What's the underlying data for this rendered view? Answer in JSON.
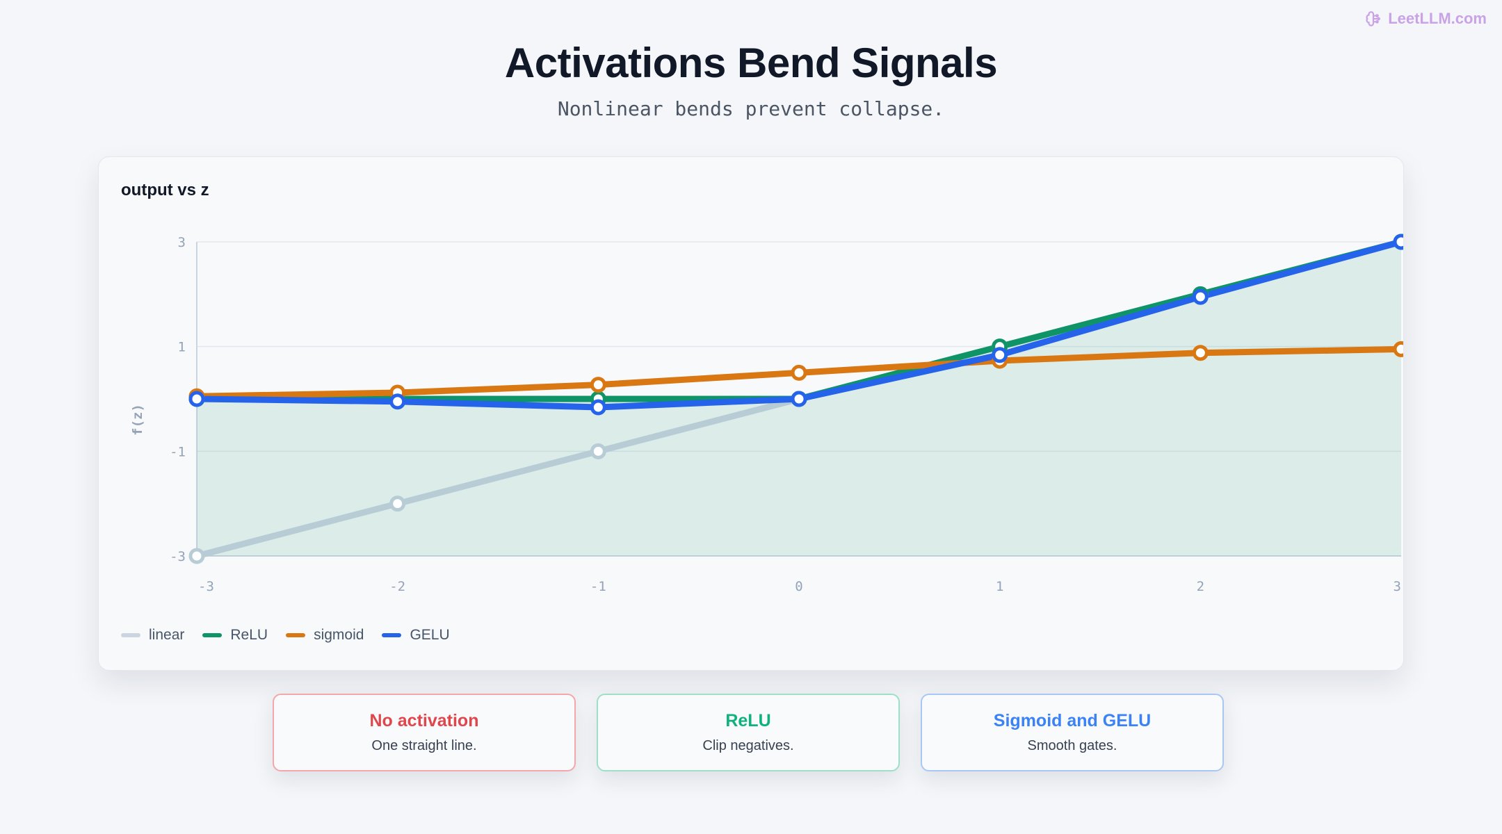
{
  "brand": {
    "text": "LeetLLM.com",
    "icon": "brain-icon",
    "color": "#c9a3e6"
  },
  "title": "Activations Bend Signals",
  "subtitle": "Nonlinear bends prevent collapse.",
  "card_title": "output vs z",
  "chart_data": {
    "type": "line",
    "title": "output vs z",
    "xlabel": "",
    "ylabel": "f(z)",
    "x": [
      -3,
      -2,
      -1,
      0,
      1,
      2,
      3
    ],
    "xticks": [
      "-3",
      "-2",
      "-1",
      "0",
      "1",
      "2",
      "3"
    ],
    "yticks": [
      "3",
      "1",
      "-1",
      "-3"
    ],
    "ytick_values": [
      3,
      1,
      -1,
      -3
    ],
    "xlim": [
      -3,
      3
    ],
    "ylim": [
      -3,
      3
    ],
    "grid": true,
    "legend_position": "bottom-left",
    "area_fill_series": "ReLU",
    "series": [
      {
        "name": "linear",
        "color": "#b8ccd6",
        "values": [
          -3,
          -2,
          -1,
          0,
          1,
          2,
          3
        ]
      },
      {
        "name": "ReLU",
        "color": "#0f9467",
        "values": [
          0,
          0,
          0,
          0,
          1,
          2,
          3
        ]
      },
      {
        "name": "sigmoid",
        "color": "#d97812",
        "values": [
          0.05,
          0.12,
          0.27,
          0.5,
          0.73,
          0.88,
          0.95
        ]
      },
      {
        "name": "GELU",
        "color": "#2563eb",
        "values": [
          0,
          -0.05,
          -0.16,
          0,
          0.84,
          1.95,
          3
        ]
      }
    ],
    "legend": [
      {
        "name": "linear",
        "color": "#cbd5e1"
      },
      {
        "name": "ReLU",
        "color": "#0f9467"
      },
      {
        "name": "sigmoid",
        "color": "#d97812"
      },
      {
        "name": "GELU",
        "color": "#2563eb"
      }
    ]
  },
  "notes": [
    {
      "title": "No activation",
      "body": "One straight line.",
      "color": "#e0474c",
      "border": "#f3a7a9"
    },
    {
      "title": "ReLU",
      "body": "Clip negatives.",
      "color": "#10b27b",
      "border": "#9ee0c5"
    },
    {
      "title": "Sigmoid and GELU",
      "body": "Smooth gates.",
      "color": "#3b82f6",
      "border": "#a9c7f3"
    }
  ]
}
